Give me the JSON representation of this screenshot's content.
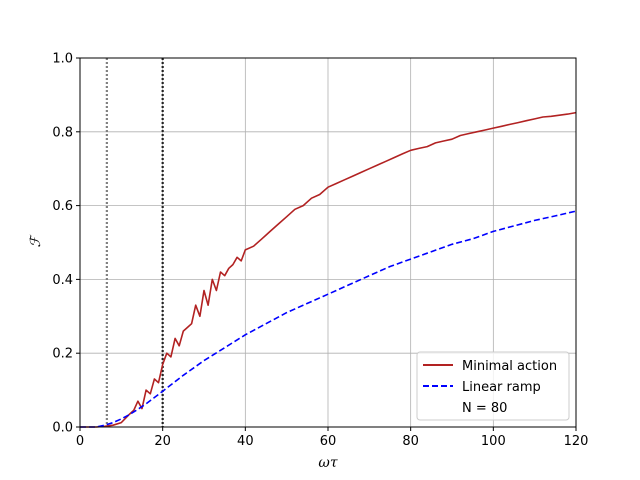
{
  "chart_data": {
    "type": "line",
    "title": "",
    "xlabel": "ωτ",
    "ylabel": "ℱ",
    "xlim": [
      0,
      120
    ],
    "ylim": [
      0,
      1.0
    ],
    "grid": true,
    "xticks": [
      "0",
      "20",
      "40",
      "60",
      "80",
      "100",
      "120"
    ],
    "yticks": [
      "0.0",
      "0.2",
      "0.4",
      "0.6",
      "0.8",
      "1.0"
    ],
    "legend": {
      "placement": "lower-right",
      "note": "N = 80"
    },
    "vlines": [
      {
        "x": 6.5,
        "color": "#808080",
        "style": "dotted"
      },
      {
        "x": 20,
        "color": "#222222",
        "style": "dotted"
      }
    ],
    "series": [
      {
        "name": "Minimal action",
        "color": "#b22222",
        "style": "solid",
        "points": [
          [
            0,
            0.0
          ],
          [
            4,
            0.0
          ],
          [
            6,
            0.002
          ],
          [
            8,
            0.005
          ],
          [
            10,
            0.012
          ],
          [
            12,
            0.035
          ],
          [
            13,
            0.045
          ],
          [
            14,
            0.07
          ],
          [
            15,
            0.05
          ],
          [
            16,
            0.1
          ],
          [
            17,
            0.09
          ],
          [
            18,
            0.13
          ],
          [
            19,
            0.12
          ],
          [
            20,
            0.17
          ],
          [
            21,
            0.2
          ],
          [
            22,
            0.19
          ],
          [
            23,
            0.24
          ],
          [
            24,
            0.22
          ],
          [
            25,
            0.26
          ],
          [
            26,
            0.27
          ],
          [
            27,
            0.28
          ],
          [
            28,
            0.33
          ],
          [
            29,
            0.3
          ],
          [
            30,
            0.37
          ],
          [
            31,
            0.33
          ],
          [
            32,
            0.4
          ],
          [
            33,
            0.37
          ],
          [
            34,
            0.42
          ],
          [
            35,
            0.41
          ],
          [
            36,
            0.43
          ],
          [
            37,
            0.44
          ],
          [
            38,
            0.46
          ],
          [
            39,
            0.45
          ],
          [
            40,
            0.48
          ],
          [
            42,
            0.49
          ],
          [
            44,
            0.51
          ],
          [
            45,
            0.52
          ],
          [
            46,
            0.53
          ],
          [
            48,
            0.55
          ],
          [
            50,
            0.57
          ],
          [
            52,
            0.59
          ],
          [
            54,
            0.6
          ],
          [
            56,
            0.62
          ],
          [
            58,
            0.63
          ],
          [
            60,
            0.65
          ],
          [
            62,
            0.66
          ],
          [
            64,
            0.67
          ],
          [
            66,
            0.68
          ],
          [
            68,
            0.69
          ],
          [
            70,
            0.7
          ],
          [
            72,
            0.71
          ],
          [
            74,
            0.72
          ],
          [
            76,
            0.73
          ],
          [
            78,
            0.74
          ],
          [
            80,
            0.75
          ],
          [
            82,
            0.755
          ],
          [
            84,
            0.76
          ],
          [
            86,
            0.77
          ],
          [
            88,
            0.775
          ],
          [
            90,
            0.78
          ],
          [
            92,
            0.79
          ],
          [
            94,
            0.795
          ],
          [
            96,
            0.8
          ],
          [
            98,
            0.805
          ],
          [
            100,
            0.81
          ],
          [
            102,
            0.815
          ],
          [
            104,
            0.82
          ],
          [
            106,
            0.825
          ],
          [
            108,
            0.83
          ],
          [
            110,
            0.835
          ],
          [
            112,
            0.84
          ],
          [
            114,
            0.842
          ],
          [
            116,
            0.845
          ],
          [
            118,
            0.848
          ],
          [
            120,
            0.852
          ]
        ]
      },
      {
        "name": "Linear ramp",
        "color": "#0000ff",
        "style": "dashed",
        "points": [
          [
            0,
            0.0
          ],
          [
            4,
            0.0
          ],
          [
            6,
            0.005
          ],
          [
            8,
            0.012
          ],
          [
            10,
            0.022
          ],
          [
            12,
            0.034
          ],
          [
            14,
            0.048
          ],
          [
            16,
            0.063
          ],
          [
            18,
            0.08
          ],
          [
            20,
            0.097
          ],
          [
            22,
            0.114
          ],
          [
            25,
            0.14
          ],
          [
            30,
            0.18
          ],
          [
            35,
            0.215
          ],
          [
            40,
            0.25
          ],
          [
            45,
            0.28
          ],
          [
            50,
            0.31
          ],
          [
            55,
            0.335
          ],
          [
            60,
            0.36
          ],
          [
            65,
            0.385
          ],
          [
            70,
            0.41
          ],
          [
            75,
            0.435
          ],
          [
            80,
            0.455
          ],
          [
            85,
            0.475
          ],
          [
            90,
            0.495
          ],
          [
            95,
            0.51
          ],
          [
            100,
            0.53
          ],
          [
            105,
            0.545
          ],
          [
            110,
            0.56
          ],
          [
            115,
            0.572
          ],
          [
            120,
            0.585
          ]
        ]
      }
    ]
  }
}
